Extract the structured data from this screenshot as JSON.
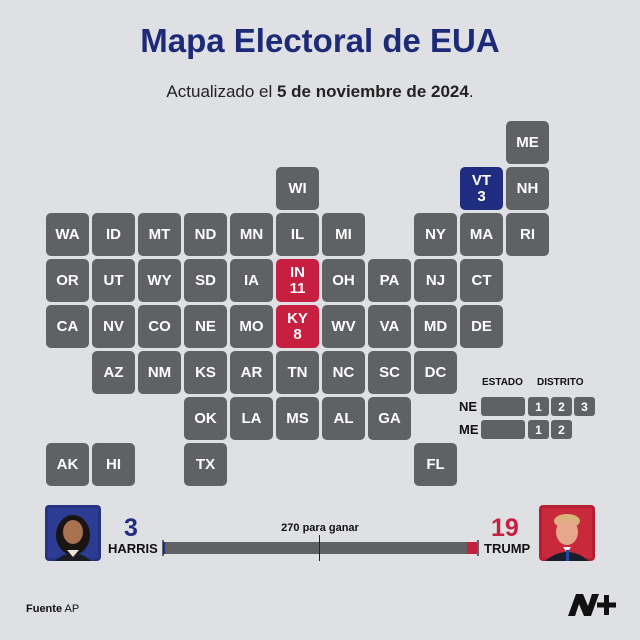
{
  "title": "Mapa Electoral de EUA",
  "subtitle": {
    "prefix": "Actualizado el ",
    "date": "5 de noviembre de 2024",
    "suffix": "."
  },
  "colors": {
    "neutral": "#5f6164",
    "dem": "#1f2d80",
    "rep": "#c71f3f",
    "background": "#dfe0e4",
    "title": "#1d2a78"
  },
  "states": [
    {
      "code": "ME",
      "row": 0,
      "col": 10,
      "status": "none",
      "ev": ""
    },
    {
      "code": "WI",
      "row": 1,
      "col": 5,
      "status": "none",
      "ev": ""
    },
    {
      "code": "VT",
      "row": 1,
      "col": 9,
      "status": "dem",
      "ev": "3"
    },
    {
      "code": "NH",
      "row": 1,
      "col": 10,
      "status": "none",
      "ev": ""
    },
    {
      "code": "WA",
      "row": 2,
      "col": 0,
      "status": "none",
      "ev": ""
    },
    {
      "code": "ID",
      "row": 2,
      "col": 1,
      "status": "none",
      "ev": ""
    },
    {
      "code": "MT",
      "row": 2,
      "col": 2,
      "status": "none",
      "ev": ""
    },
    {
      "code": "ND",
      "row": 2,
      "col": 3,
      "status": "none",
      "ev": ""
    },
    {
      "code": "MN",
      "row": 2,
      "col": 4,
      "status": "none",
      "ev": ""
    },
    {
      "code": "IL",
      "row": 2,
      "col": 5,
      "status": "none",
      "ev": ""
    },
    {
      "code": "MI",
      "row": 2,
      "col": 6,
      "status": "none",
      "ev": ""
    },
    {
      "code": "NY",
      "row": 2,
      "col": 8,
      "status": "none",
      "ev": ""
    },
    {
      "code": "MA",
      "row": 2,
      "col": 9,
      "status": "none",
      "ev": ""
    },
    {
      "code": "RI",
      "row": 2,
      "col": 10,
      "status": "none",
      "ev": ""
    },
    {
      "code": "OR",
      "row": 3,
      "col": 0,
      "status": "none",
      "ev": ""
    },
    {
      "code": "UT",
      "row": 3,
      "col": 1,
      "status": "none",
      "ev": ""
    },
    {
      "code": "WY",
      "row": 3,
      "col": 2,
      "status": "none",
      "ev": ""
    },
    {
      "code": "SD",
      "row": 3,
      "col": 3,
      "status": "none",
      "ev": ""
    },
    {
      "code": "IA",
      "row": 3,
      "col": 4,
      "status": "none",
      "ev": ""
    },
    {
      "code": "IN",
      "row": 3,
      "col": 5,
      "status": "rep",
      "ev": "11"
    },
    {
      "code": "OH",
      "row": 3,
      "col": 6,
      "status": "none",
      "ev": ""
    },
    {
      "code": "PA",
      "row": 3,
      "col": 7,
      "status": "none",
      "ev": ""
    },
    {
      "code": "NJ",
      "row": 3,
      "col": 8,
      "status": "none",
      "ev": ""
    },
    {
      "code": "CT",
      "row": 3,
      "col": 9,
      "status": "none",
      "ev": ""
    },
    {
      "code": "CA",
      "row": 4,
      "col": 0,
      "status": "none",
      "ev": ""
    },
    {
      "code": "NV",
      "row": 4,
      "col": 1,
      "status": "none",
      "ev": ""
    },
    {
      "code": "CO",
      "row": 4,
      "col": 2,
      "status": "none",
      "ev": ""
    },
    {
      "code": "NE",
      "row": 4,
      "col": 3,
      "status": "none",
      "ev": ""
    },
    {
      "code": "MO",
      "row": 4,
      "col": 4,
      "status": "none",
      "ev": ""
    },
    {
      "code": "KY",
      "row": 4,
      "col": 5,
      "status": "rep",
      "ev": "8"
    },
    {
      "code": "WV",
      "row": 4,
      "col": 6,
      "status": "none",
      "ev": ""
    },
    {
      "code": "VA",
      "row": 4,
      "col": 7,
      "status": "none",
      "ev": ""
    },
    {
      "code": "MD",
      "row": 4,
      "col": 8,
      "status": "none",
      "ev": ""
    },
    {
      "code": "DE",
      "row": 4,
      "col": 9,
      "status": "none",
      "ev": ""
    },
    {
      "code": "AZ",
      "row": 5,
      "col": 1,
      "status": "none",
      "ev": ""
    },
    {
      "code": "NM",
      "row": 5,
      "col": 2,
      "status": "none",
      "ev": ""
    },
    {
      "code": "KS",
      "row": 5,
      "col": 3,
      "status": "none",
      "ev": ""
    },
    {
      "code": "AR",
      "row": 5,
      "col": 4,
      "status": "none",
      "ev": ""
    },
    {
      "code": "TN",
      "row": 5,
      "col": 5,
      "status": "none",
      "ev": ""
    },
    {
      "code": "NC",
      "row": 5,
      "col": 6,
      "status": "none",
      "ev": ""
    },
    {
      "code": "SC",
      "row": 5,
      "col": 7,
      "status": "none",
      "ev": ""
    },
    {
      "code": "DC",
      "row": 5,
      "col": 8,
      "status": "none",
      "ev": ""
    },
    {
      "code": "OK",
      "row": 6,
      "col": 3,
      "status": "none",
      "ev": ""
    },
    {
      "code": "LA",
      "row": 6,
      "col": 4,
      "status": "none",
      "ev": ""
    },
    {
      "code": "MS",
      "row": 6,
      "col": 5,
      "status": "none",
      "ev": ""
    },
    {
      "code": "AL",
      "row": 6,
      "col": 6,
      "status": "none",
      "ev": ""
    },
    {
      "code": "GA",
      "row": 6,
      "col": 7,
      "status": "none",
      "ev": ""
    },
    {
      "code": "AK",
      "row": 7,
      "col": 0,
      "status": "none",
      "ev": ""
    },
    {
      "code": "HI",
      "row": 7,
      "col": 1,
      "status": "none",
      "ev": ""
    },
    {
      "code": "TX",
      "row": 7,
      "col": 3,
      "status": "none",
      "ev": ""
    },
    {
      "code": "FL",
      "row": 7,
      "col": 8,
      "status": "none",
      "ev": ""
    }
  ],
  "legend": {
    "state_header": "ESTADO",
    "district_header": "DISTRITO",
    "rows": [
      {
        "label": "NE",
        "districts": [
          "1",
          "2",
          "3"
        ]
      },
      {
        "label": "ME",
        "districts": [
          "1",
          "2"
        ]
      }
    ]
  },
  "race": {
    "threshold_label": "270 para ganar",
    "total": 538,
    "threshold": 270,
    "harris": {
      "name": "HARRIS",
      "votes": 3,
      "photo_icon": "harris-photo",
      "color": "#1f2d80"
    },
    "trump": {
      "name": "TRUMP",
      "votes": 19,
      "photo_icon": "trump-photo",
      "color": "#c71f3f"
    }
  },
  "source": {
    "label": "Fuente",
    "value": "AP"
  },
  "logo_icon": "n-plus-logo"
}
